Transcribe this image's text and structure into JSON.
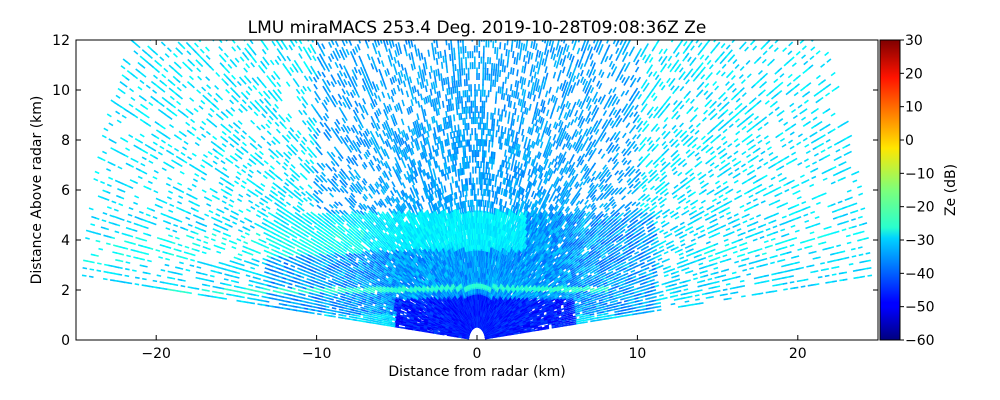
{
  "chart_data": {
    "type": "heatmap",
    "title": "LMU miraMACS 253.4 Deg. 2019-10-28T09:08:36Z  Ze",
    "xlabel": "Distance from radar (km)",
    "ylabel": "Distance Above radar  (km)",
    "xlim": [
      -25,
      25
    ],
    "ylim": [
      0,
      12
    ],
    "xticks": [
      -20,
      -10,
      0,
      10,
      20
    ],
    "xtick_labels": [
      "−20",
      "−10",
      "0",
      "10",
      "20"
    ],
    "yticks": [
      0,
      2,
      4,
      6,
      8,
      10,
      12
    ],
    "ytick_labels": [
      "0",
      "2",
      "4",
      "6",
      "8",
      "10",
      "12"
    ],
    "colorbar": {
      "label": "Ze (dB)",
      "range": [
        -60,
        30
      ],
      "ticks": [
        30,
        20,
        10,
        0,
        -10,
        -20,
        -30,
        -40,
        -50,
        -60
      ],
      "tick_labels": [
        "30",
        "20",
        "10",
        "0",
        "−10",
        "−20",
        "−30",
        "−40",
        "−50",
        "−60"
      ],
      "colormap": "jet"
    },
    "scan": {
      "elevation_min_deg": 6,
      "elevation_max_deg": 174,
      "max_range_km": 24.5
    },
    "regions": [
      {
        "name": "upper sparse echoes",
        "x": [
          -24,
          24
        ],
        "y": [
          5,
          12
        ],
        "ze_db": -35
      },
      {
        "name": "main stratiform layer",
        "x": [
          -12,
          10
        ],
        "y": [
          2.5,
          5
        ],
        "ze_db": -30
      },
      {
        "name": "left tilted band",
        "x": [
          -24,
          -8
        ],
        "y": [
          3.2,
          4.6
        ],
        "ze_db": -27
      },
      {
        "name": "right tilted band",
        "x": [
          15,
          24
        ],
        "y": [
          3.5,
          4.3
        ],
        "ze_db": -27
      },
      {
        "name": "bright horizontal line",
        "x": [
          -24,
          8
        ],
        "y": [
          1.9,
          2.1
        ],
        "ze_db": -24
      },
      {
        "name": "low intense echoes",
        "x": [
          -5,
          5
        ],
        "y": [
          0,
          1.5
        ],
        "ze_db": -45
      }
    ]
  }
}
